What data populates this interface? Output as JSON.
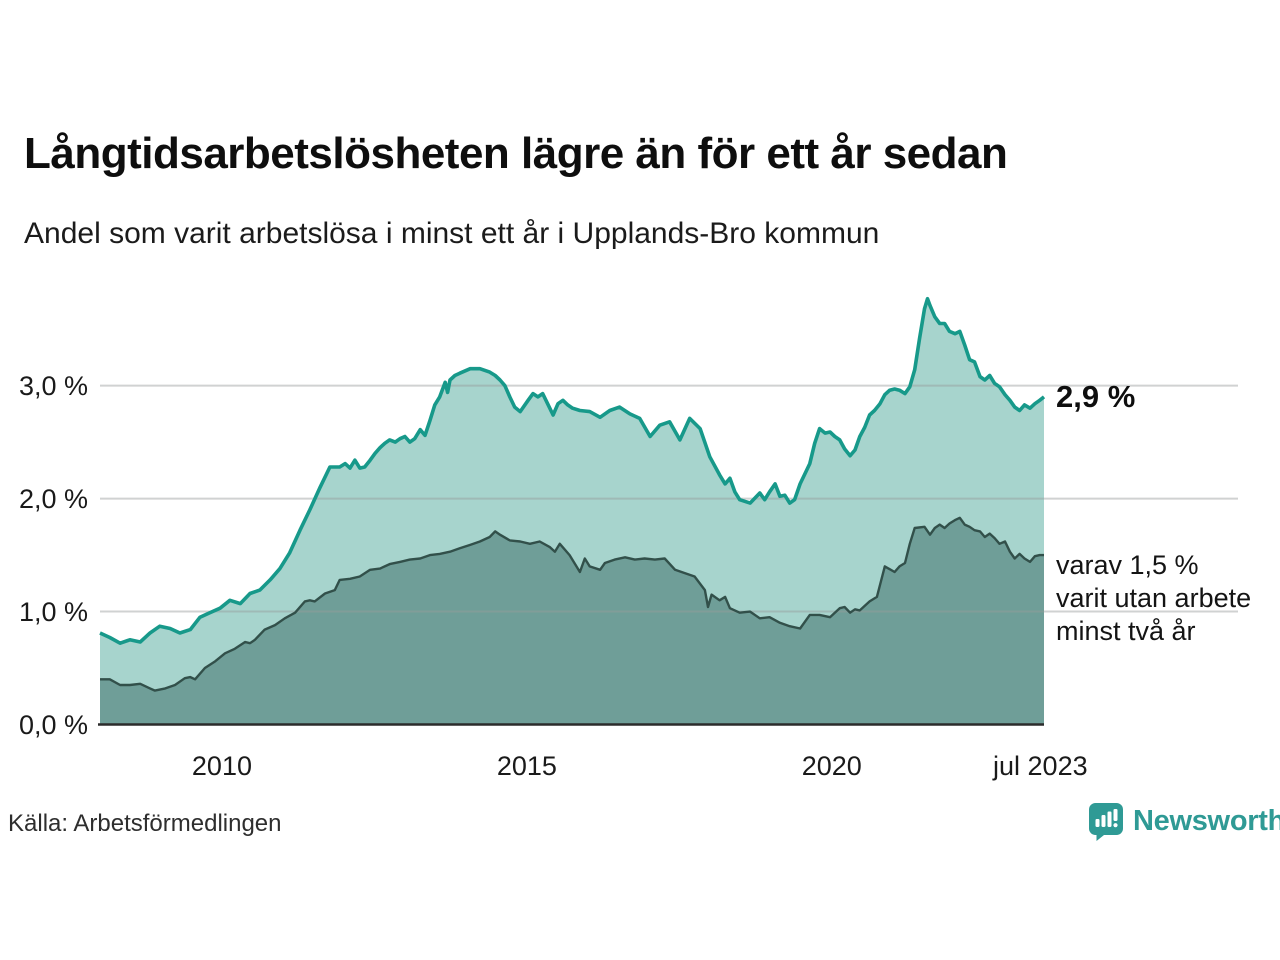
{
  "header": {
    "title": "Långtidsarbetslösheten lägre än för ett år sedan",
    "subtitle": "Andel som varit arbetslösa i minst ett år i Upplands-Bro kommun"
  },
  "annotations": {
    "total_label": "2,9 %",
    "two_year_lines": [
      "varav 1,5 %",
      "varit utan arbete",
      "minst två år"
    ]
  },
  "footer": {
    "source": "Källa: Arbetsförmedlingen",
    "brand_wordmark": "Newsworthy"
  },
  "colors": {
    "total_line": "#17998a",
    "total_fill": "#a7d4cd",
    "two_year_line": "#32504a",
    "two_year_fill": "#6f9e98",
    "grid": "rgba(150,156,155,0.45)",
    "axis_baseline": "#2b2b2b",
    "brand_teal": "#2f9a95"
  },
  "chart_data": {
    "type": "area",
    "title": "Långtidsarbetslösheten lägre än för ett år sedan",
    "subtitle": "Andel som varit arbetslösa i minst ett år i Upplands-Bro kommun",
    "unit": "%",
    "grid": true,
    "legend_position": "right-annotations",
    "x_axis": {
      "range": [
        2008.0,
        2023.48
      ],
      "ticks": [
        {
          "label": "2010",
          "year": 2010
        },
        {
          "label": "2015",
          "year": 2015
        },
        {
          "label": "2020",
          "year": 2020
        },
        {
          "label": "jul 2023",
          "year": 2023.42
        }
      ]
    },
    "y_axis": {
      "range": [
        0,
        3.9
      ],
      "gridline_values": [
        1,
        2,
        3
      ],
      "ticks": [
        {
          "label": "3,0 %",
          "value": 3
        },
        {
          "label": "2,0 %",
          "value": 2
        },
        {
          "label": "1,0 %",
          "value": 1
        },
        {
          "label": "0,0 %",
          "value": 0
        }
      ]
    },
    "series": [
      {
        "name": "Andel arbetslösa minst ett år",
        "end_label": "2,9 %",
        "points": [
          [
            2008.0,
            0.81
          ],
          [
            2008.16,
            0.77
          ],
          [
            2008.33,
            0.72
          ],
          [
            2008.49,
            0.75
          ],
          [
            2008.66,
            0.73
          ],
          [
            2008.82,
            0.81
          ],
          [
            2008.98,
            0.87
          ],
          [
            2009.15,
            0.85
          ],
          [
            2009.31,
            0.81
          ],
          [
            2009.48,
            0.84
          ],
          [
            2009.64,
            0.95
          ],
          [
            2009.8,
            0.99
          ],
          [
            2009.97,
            1.03
          ],
          [
            2010.13,
            1.1
          ],
          [
            2010.3,
            1.07
          ],
          [
            2010.46,
            1.16
          ],
          [
            2010.62,
            1.19
          ],
          [
            2010.79,
            1.28
          ],
          [
            2010.95,
            1.38
          ],
          [
            2011.11,
            1.52
          ],
          [
            2011.28,
            1.72
          ],
          [
            2011.44,
            1.9
          ],
          [
            2011.61,
            2.1
          ],
          [
            2011.77,
            2.28
          ],
          [
            2011.93,
            2.28
          ],
          [
            2012.02,
            2.31
          ],
          [
            2012.1,
            2.27
          ],
          [
            2012.18,
            2.34
          ],
          [
            2012.26,
            2.27
          ],
          [
            2012.34,
            2.28
          ],
          [
            2012.43,
            2.34
          ],
          [
            2012.51,
            2.4
          ],
          [
            2012.59,
            2.45
          ],
          [
            2012.67,
            2.49
          ],
          [
            2012.75,
            2.52
          ],
          [
            2012.84,
            2.5
          ],
          [
            2012.92,
            2.53
          ],
          [
            2013.0,
            2.55
          ],
          [
            2013.08,
            2.5
          ],
          [
            2013.16,
            2.53
          ],
          [
            2013.25,
            2.61
          ],
          [
            2013.33,
            2.56
          ],
          [
            2013.41,
            2.69
          ],
          [
            2013.49,
            2.83
          ],
          [
            2013.57,
            2.9
          ],
          [
            2013.66,
            3.03
          ],
          [
            2013.7,
            2.94
          ],
          [
            2013.74,
            3.05
          ],
          [
            2013.82,
            3.09
          ],
          [
            2013.9,
            3.11
          ],
          [
            2014.07,
            3.15
          ],
          [
            2014.23,
            3.15
          ],
          [
            2014.39,
            3.12
          ],
          [
            2014.48,
            3.09
          ],
          [
            2014.56,
            3.05
          ],
          [
            2014.64,
            3.0
          ],
          [
            2014.72,
            2.9
          ],
          [
            2014.8,
            2.81
          ],
          [
            2014.89,
            2.77
          ],
          [
            2015.02,
            2.87
          ],
          [
            2015.1,
            2.93
          ],
          [
            2015.18,
            2.9
          ],
          [
            2015.26,
            2.93
          ],
          [
            2015.34,
            2.84
          ],
          [
            2015.43,
            2.74
          ],
          [
            2015.51,
            2.84
          ],
          [
            2015.59,
            2.87
          ],
          [
            2015.67,
            2.83
          ],
          [
            2015.75,
            2.8
          ],
          [
            2015.87,
            2.78
          ],
          [
            2016.03,
            2.77
          ],
          [
            2016.2,
            2.72
          ],
          [
            2016.36,
            2.78
          ],
          [
            2016.52,
            2.81
          ],
          [
            2016.69,
            2.75
          ],
          [
            2016.85,
            2.71
          ],
          [
            2017.02,
            2.55
          ],
          [
            2017.18,
            2.65
          ],
          [
            2017.34,
            2.68
          ],
          [
            2017.51,
            2.52
          ],
          [
            2017.67,
            2.71
          ],
          [
            2017.84,
            2.62
          ],
          [
            2018.0,
            2.37
          ],
          [
            2018.16,
            2.21
          ],
          [
            2018.25,
            2.13
          ],
          [
            2018.33,
            2.18
          ],
          [
            2018.41,
            2.06
          ],
          [
            2018.49,
            1.99
          ],
          [
            2018.66,
            1.96
          ],
          [
            2018.82,
            2.05
          ],
          [
            2018.9,
            1.99
          ],
          [
            2018.98,
            2.06
          ],
          [
            2019.07,
            2.13
          ],
          [
            2019.15,
            2.02
          ],
          [
            2019.23,
            2.03
          ],
          [
            2019.31,
            1.96
          ],
          [
            2019.39,
            1.99
          ],
          [
            2019.48,
            2.13
          ],
          [
            2019.64,
            2.31
          ],
          [
            2019.72,
            2.49
          ],
          [
            2019.8,
            2.62
          ],
          [
            2019.89,
            2.58
          ],
          [
            2019.97,
            2.59
          ],
          [
            2020.05,
            2.55
          ],
          [
            2020.13,
            2.52
          ],
          [
            2020.21,
            2.44
          ],
          [
            2020.3,
            2.38
          ],
          [
            2020.38,
            2.43
          ],
          [
            2020.46,
            2.55
          ],
          [
            2020.54,
            2.63
          ],
          [
            2020.62,
            2.74
          ],
          [
            2020.7,
            2.78
          ],
          [
            2020.79,
            2.84
          ],
          [
            2020.87,
            2.92
          ],
          [
            2020.95,
            2.96
          ],
          [
            2021.03,
            2.97
          ],
          [
            2021.11,
            2.96
          ],
          [
            2021.2,
            2.93
          ],
          [
            2021.28,
            2.99
          ],
          [
            2021.36,
            3.14
          ],
          [
            2021.44,
            3.42
          ],
          [
            2021.52,
            3.68
          ],
          [
            2021.57,
            3.77
          ],
          [
            2021.61,
            3.71
          ],
          [
            2021.69,
            3.61
          ],
          [
            2021.77,
            3.55
          ],
          [
            2021.85,
            3.55
          ],
          [
            2021.93,
            3.48
          ],
          [
            2022.02,
            3.46
          ],
          [
            2022.1,
            3.48
          ],
          [
            2022.18,
            3.36
          ],
          [
            2022.26,
            3.23
          ],
          [
            2022.34,
            3.21
          ],
          [
            2022.43,
            3.08
          ],
          [
            2022.51,
            3.05
          ],
          [
            2022.59,
            3.09
          ],
          [
            2022.67,
            3.02
          ],
          [
            2022.75,
            2.99
          ],
          [
            2022.84,
            2.92
          ],
          [
            2022.92,
            2.87
          ],
          [
            2023.0,
            2.81
          ],
          [
            2023.08,
            2.78
          ],
          [
            2023.16,
            2.83
          ],
          [
            2023.25,
            2.8
          ],
          [
            2023.33,
            2.84
          ],
          [
            2023.41,
            2.87
          ],
          [
            2023.48,
            2.9
          ]
        ]
      },
      {
        "name": "varav utan arbete minst två år",
        "end_label": "varav 1,5 % varit utan arbete minst två år",
        "points": [
          [
            2008.0,
            0.4
          ],
          [
            2008.16,
            0.4
          ],
          [
            2008.33,
            0.35
          ],
          [
            2008.49,
            0.35
          ],
          [
            2008.66,
            0.36
          ],
          [
            2008.82,
            0.32
          ],
          [
            2008.9,
            0.3
          ],
          [
            2009.07,
            0.32
          ],
          [
            2009.23,
            0.35
          ],
          [
            2009.39,
            0.41
          ],
          [
            2009.48,
            0.42
          ],
          [
            2009.56,
            0.4
          ],
          [
            2009.72,
            0.5
          ],
          [
            2009.89,
            0.56
          ],
          [
            2010.05,
            0.63
          ],
          [
            2010.21,
            0.67
          ],
          [
            2010.38,
            0.73
          ],
          [
            2010.46,
            0.72
          ],
          [
            2010.54,
            0.75
          ],
          [
            2010.7,
            0.84
          ],
          [
            2010.87,
            0.88
          ],
          [
            2011.03,
            0.94
          ],
          [
            2011.2,
            0.99
          ],
          [
            2011.36,
            1.09
          ],
          [
            2011.44,
            1.1
          ],
          [
            2011.52,
            1.09
          ],
          [
            2011.69,
            1.16
          ],
          [
            2011.85,
            1.19
          ],
          [
            2011.93,
            1.28
          ],
          [
            2012.1,
            1.29
          ],
          [
            2012.26,
            1.31
          ],
          [
            2012.43,
            1.37
          ],
          [
            2012.59,
            1.38
          ],
          [
            2012.75,
            1.42
          ],
          [
            2012.92,
            1.44
          ],
          [
            2013.08,
            1.46
          ],
          [
            2013.25,
            1.47
          ],
          [
            2013.41,
            1.5
          ],
          [
            2013.57,
            1.51
          ],
          [
            2013.74,
            1.53
          ],
          [
            2013.9,
            1.56
          ],
          [
            2014.07,
            1.59
          ],
          [
            2014.23,
            1.62
          ],
          [
            2014.39,
            1.66
          ],
          [
            2014.48,
            1.71
          ],
          [
            2014.56,
            1.68
          ],
          [
            2014.72,
            1.63
          ],
          [
            2014.89,
            1.62
          ],
          [
            2015.05,
            1.6
          ],
          [
            2015.21,
            1.62
          ],
          [
            2015.38,
            1.57
          ],
          [
            2015.46,
            1.53
          ],
          [
            2015.54,
            1.6
          ],
          [
            2015.7,
            1.5
          ],
          [
            2015.87,
            1.35
          ],
          [
            2015.95,
            1.47
          ],
          [
            2016.03,
            1.4
          ],
          [
            2016.2,
            1.37
          ],
          [
            2016.28,
            1.43
          ],
          [
            2016.44,
            1.46
          ],
          [
            2016.61,
            1.48
          ],
          [
            2016.77,
            1.46
          ],
          [
            2016.93,
            1.47
          ],
          [
            2017.1,
            1.46
          ],
          [
            2017.26,
            1.47
          ],
          [
            2017.43,
            1.37
          ],
          [
            2017.59,
            1.34
          ],
          [
            2017.75,
            1.31
          ],
          [
            2017.92,
            1.19
          ],
          [
            2017.97,
            1.04
          ],
          [
            2018.03,
            1.15
          ],
          [
            2018.16,
            1.1
          ],
          [
            2018.25,
            1.13
          ],
          [
            2018.33,
            1.03
          ],
          [
            2018.49,
            0.99
          ],
          [
            2018.66,
            1.0
          ],
          [
            2018.82,
            0.94
          ],
          [
            2018.98,
            0.95
          ],
          [
            2019.15,
            0.9
          ],
          [
            2019.31,
            0.87
          ],
          [
            2019.48,
            0.85
          ],
          [
            2019.64,
            0.97
          ],
          [
            2019.8,
            0.97
          ],
          [
            2019.97,
            0.95
          ],
          [
            2020.13,
            1.03
          ],
          [
            2020.21,
            1.04
          ],
          [
            2020.3,
            0.99
          ],
          [
            2020.38,
            1.02
          ],
          [
            2020.46,
            1.01
          ],
          [
            2020.62,
            1.09
          ],
          [
            2020.74,
            1.13
          ],
          [
            2020.87,
            1.4
          ],
          [
            2021.03,
            1.35
          ],
          [
            2021.11,
            1.4
          ],
          [
            2021.2,
            1.43
          ],
          [
            2021.28,
            1.6
          ],
          [
            2021.36,
            1.74
          ],
          [
            2021.52,
            1.75
          ],
          [
            2021.61,
            1.68
          ],
          [
            2021.69,
            1.74
          ],
          [
            2021.77,
            1.77
          ],
          [
            2021.85,
            1.74
          ],
          [
            2021.93,
            1.78
          ],
          [
            2022.02,
            1.81
          ],
          [
            2022.1,
            1.83
          ],
          [
            2022.18,
            1.77
          ],
          [
            2022.26,
            1.75
          ],
          [
            2022.34,
            1.72
          ],
          [
            2022.43,
            1.71
          ],
          [
            2022.51,
            1.66
          ],
          [
            2022.59,
            1.69
          ],
          [
            2022.67,
            1.65
          ],
          [
            2022.75,
            1.6
          ],
          [
            2022.84,
            1.62
          ],
          [
            2022.92,
            1.53
          ],
          [
            2023.0,
            1.47
          ],
          [
            2023.08,
            1.51
          ],
          [
            2023.16,
            1.47
          ],
          [
            2023.25,
            1.44
          ],
          [
            2023.33,
            1.49
          ],
          [
            2023.41,
            1.5
          ],
          [
            2023.48,
            1.5
          ]
        ]
      }
    ]
  }
}
